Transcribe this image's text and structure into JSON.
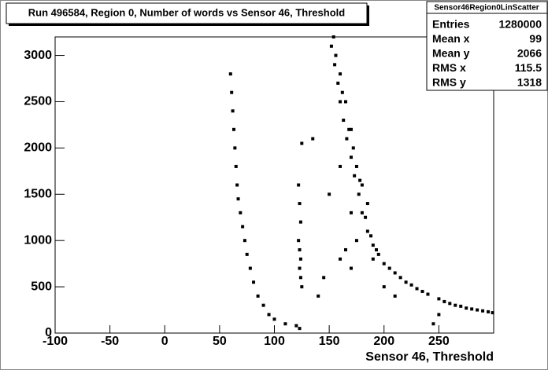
{
  "chart_data": {
    "type": "scatter",
    "title": "Run 496584, Region 0, Number of words vs Sensor 46, Threshold",
    "x_label": "Sensor 46, Threshold",
    "stats_title": "Sensor46Region0LinScatter",
    "stats": [
      {
        "label": "Entries",
        "value": 1280000
      },
      {
        "label": "Mean x",
        "value": 99
      },
      {
        "label": "Mean y",
        "value": 2066
      },
      {
        "label": "RMS x",
        "value": 115.5
      },
      {
        "label": "RMS y",
        "value": 1318
      }
    ],
    "color": "#000000",
    "xlim": [
      -100,
      300
    ],
    "ylim": [
      0,
      3200
    ],
    "xticks": [
      -100,
      -50,
      0,
      50,
      100,
      150,
      200,
      250
    ],
    "yticks": [
      0,
      500,
      1000,
      1500,
      2000,
      2500,
      3000
    ],
    "x": [
      60,
      61,
      62,
      63,
      64,
      65,
      66,
      67,
      69,
      71,
      73,
      75,
      78,
      81,
      85,
      90,
      95,
      100,
      110,
      120,
      123,
      122,
      123,
      124,
      122,
      123,
      124,
      123,
      124,
      125,
      125,
      135,
      152,
      155,
      158,
      160,
      163,
      166,
      170,
      173,
      177,
      180,
      185,
      190,
      195,
      200,
      210,
      220,
      230,
      240,
      250,
      260,
      270,
      280,
      290,
      299,
      160,
      165,
      170,
      175,
      180,
      185,
      170,
      175,
      165,
      160,
      170,
      190,
      200,
      210,
      250,
      160,
      150,
      145,
      140,
      245,
      154,
      156,
      162,
      168,
      172,
      178,
      183,
      188,
      193,
      205,
      215,
      225,
      235,
      255,
      265,
      275,
      285,
      295
    ],
    "y": [
      2800,
      2600,
      2400,
      2200,
      2000,
      1800,
      1600,
      1450,
      1300,
      1150,
      1000,
      850,
      700,
      550,
      400,
      300,
      200,
      150,
      100,
      80,
      50,
      1600,
      1400,
      1200,
      1000,
      900,
      800,
      700,
      600,
      500,
      2050,
      2100,
      3100,
      2900,
      2700,
      2500,
      2300,
      2100,
      1900,
      1700,
      1500,
      1300,
      1100,
      950,
      850,
      750,
      650,
      550,
      480,
      420,
      370,
      320,
      290,
      260,
      240,
      220,
      2800,
      2500,
      2200,
      1800,
      1600,
      1400,
      1300,
      1000,
      900,
      800,
      700,
      800,
      500,
      400,
      200,
      1800,
      1500,
      600,
      400,
      100,
      3200,
      3000,
      2600,
      2200,
      2000,
      1650,
      1250,
      1050,
      900,
      700,
      600,
      520,
      450,
      340,
      300,
      270,
      250,
      230
    ]
  }
}
